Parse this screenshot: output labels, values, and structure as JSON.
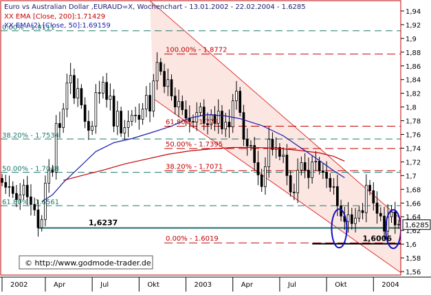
{
  "chart_data": {
    "type": "candlestick",
    "title": "Euro vs Australian Dollar ,EURAUD=X, Wochenchart - 13.01.2002 - 22.02.2004 - 1.6285",
    "legend": [
      {
        "text": "XX EMA [Close, 200]:1.71429",
        "color": "#c00000"
      },
      {
        "text": "XX EMA(2) [Close, 50]:1.69159",
        "color": "#1a1aa8"
      }
    ],
    "source": "© http://www.godmode-trader.de",
    "ylim": [
      1.555,
      1.955
    ],
    "y_ticks": [
      "1,56",
      "1,58",
      "1,6",
      "1,62",
      "1,64",
      "1,66",
      "1,68",
      "1,7",
      "1,72",
      "1,74",
      "1,76",
      "1,78",
      "1,8",
      "1,82",
      "1,84",
      "1,86",
      "1,88",
      "1,9",
      "1,92",
      "1,94"
    ],
    "y_tick_values": [
      1.56,
      1.58,
      1.6,
      1.62,
      1.64,
      1.66,
      1.68,
      1.7,
      1.72,
      1.74,
      1.76,
      1.78,
      1.8,
      1.82,
      1.84,
      1.86,
      1.88,
      1.9,
      1.92,
      1.94
    ],
    "last_price": "1,6285",
    "last_value": 1.6285,
    "x_ticks": [
      "2002",
      "Apr",
      "Jul",
      "Okt",
      "2003",
      "Apr",
      "Jul",
      "Okt",
      "2004"
    ],
    "x_tick_weeks": [
      0,
      12,
      25,
      38,
      51,
      64,
      77,
      90,
      103
    ],
    "n_weeks": 111,
    "fib_left": {
      "color": "#1a7a6a",
      "levels": [
        {
          "label": "0.00% - 1.9111",
          "value": 1.9111
        },
        {
          "label": "38.20% - 1.7534",
          "value": 1.7534
        },
        {
          "label": "50.00% - 1.7048",
          "value": 1.7048
        },
        {
          "label": "61.80% - 1.6561",
          "value": 1.6561
        }
      ]
    },
    "fib_right": {
      "color": "#c00000",
      "levels": [
        {
          "label": "100.00% - 1.8772",
          "value": 1.8772
        },
        {
          "label": "61.80% - 1.772",
          "value": 1.772
        },
        {
          "label": "50.00% - 1.7395",
          "value": 1.7395
        },
        {
          "label": "38.20% - 1.7071",
          "value": 1.7071
        },
        {
          "label": "0.00% - 1.6019",
          "value": 1.6019
        }
      ]
    },
    "support_lines": [
      {
        "label": "1,6237",
        "value": 1.6237
      },
      {
        "label": "1,6006",
        "value": 1.6006
      }
    ],
    "channel": {
      "color": "#e03030",
      "upper": {
        "from": [
          41,
          1.955
        ],
        "to": [
          111,
          1.635
        ]
      },
      "lower": {
        "from": [
          42,
          1.812
        ],
        "to": [
          111,
          1.557
        ]
      }
    },
    "ema200": [
      [
        17,
        1.693
      ],
      [
        22,
        1.7
      ],
      [
        28,
        1.708
      ],
      [
        34,
        1.717
      ],
      [
        40,
        1.724
      ],
      [
        46,
        1.731
      ],
      [
        52,
        1.736
      ],
      [
        58,
        1.739
      ],
      [
        64,
        1.741
      ],
      [
        70,
        1.741
      ],
      [
        76,
        1.74
      ],
      [
        82,
        1.737
      ],
      [
        88,
        1.733
      ],
      [
        92,
        1.728
      ],
      [
        95,
        1.721
      ]
    ],
    "ema50": [
      [
        11,
        1.662
      ],
      [
        14,
        1.672
      ],
      [
        17,
        1.69
      ],
      [
        21,
        1.71
      ],
      [
        26,
        1.735
      ],
      [
        31,
        1.748
      ],
      [
        36,
        1.754
      ],
      [
        41,
        1.762
      ],
      [
        47,
        1.772
      ],
      [
        52,
        1.784
      ],
      [
        57,
        1.789
      ],
      [
        62,
        1.787
      ],
      [
        66,
        1.783
      ],
      [
        72,
        1.773
      ],
      [
        78,
        1.758
      ],
      [
        83,
        1.74
      ],
      [
        88,
        1.722
      ],
      [
        92,
        1.707
      ],
      [
        95,
        1.697
      ]
    ],
    "closes": [
      1.69,
      1.683,
      1.684,
      1.674,
      1.665,
      1.672,
      1.686,
      1.669,
      1.658,
      1.65,
      1.624,
      1.636,
      1.689,
      1.708,
      1.705,
      1.776,
      1.77,
      1.797,
      1.835,
      1.846,
      1.813,
      1.827,
      1.803,
      1.779,
      1.766,
      1.772,
      1.821,
      1.82,
      1.836,
      1.811,
      1.816,
      1.772,
      1.794,
      1.762,
      1.77,
      1.779,
      1.788,
      1.788,
      1.782,
      1.797,
      1.817,
      1.794,
      1.838,
      1.865,
      1.852,
      1.83,
      1.84,
      1.816,
      1.8,
      1.808,
      1.796,
      1.784,
      1.779,
      1.778,
      1.792,
      1.8,
      1.776,
      1.774,
      1.789,
      1.776,
      1.794,
      1.768,
      1.778,
      1.771,
      1.809,
      1.823,
      1.792,
      1.753,
      1.743,
      1.744,
      1.719,
      1.701,
      1.684,
      1.713,
      1.753,
      1.738,
      1.741,
      1.728,
      1.73,
      1.7,
      1.676,
      1.675,
      1.708,
      1.719,
      1.708,
      1.697,
      1.72,
      1.721,
      1.707,
      1.705,
      1.696,
      1.683,
      1.684,
      1.656,
      1.641,
      1.633,
      1.643,
      1.63,
      1.638,
      1.649,
      1.646,
      1.686,
      1.678,
      1.66,
      1.645,
      1.641,
      1.619,
      1.64,
      1.647,
      1.628,
      1.629
    ],
    "ellipses": [
      {
        "center_week": 93.5,
        "center_value": 1.623,
        "color": "#1010c0"
      },
      {
        "center_week": 108.5,
        "center_value": 1.622,
        "color": "#1010c0"
      }
    ]
  }
}
